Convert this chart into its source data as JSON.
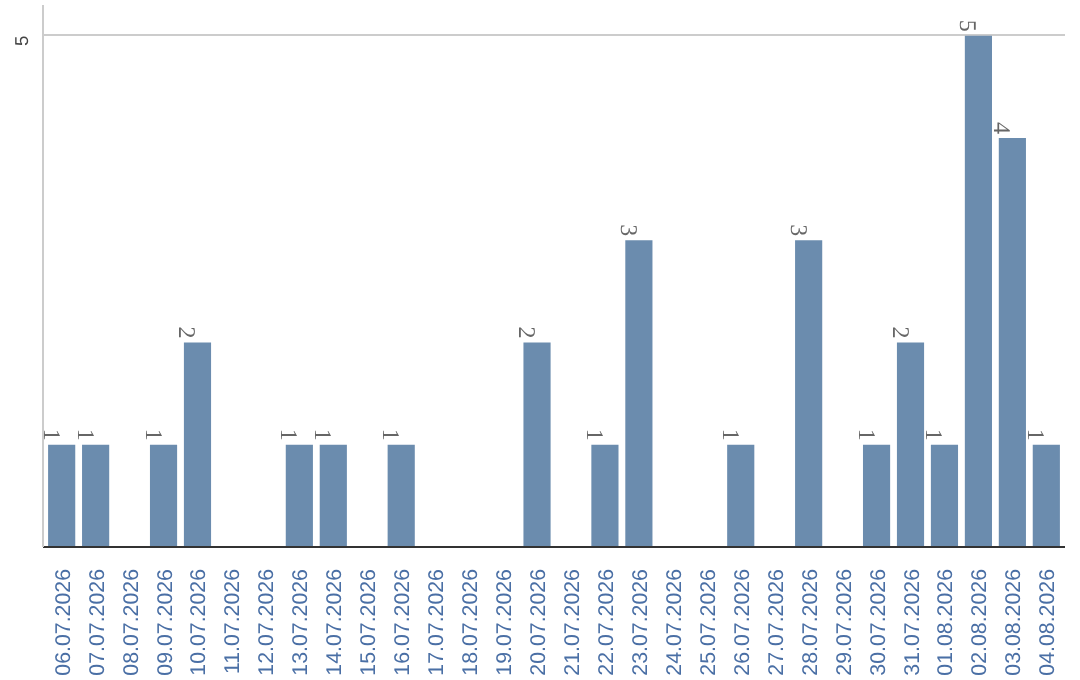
{
  "chart_data": {
    "type": "bar",
    "categories": [
      "06.07.2026",
      "07.07.2026",
      "08.07.2026",
      "09.07.2026",
      "10.07.2026",
      "11.07.2026",
      "12.07.2026",
      "13.07.2026",
      "14.07.2026",
      "15.07.2026",
      "16.07.2026",
      "17.07.2026",
      "18.07.2026",
      "19.07.2026",
      "20.07.2026",
      "21.07.2026",
      "22.07.2026",
      "23.07.2026",
      "24.07.2026",
      "25.07.2026",
      "26.07.2026",
      "27.07.2026",
      "28.07.2026",
      "29.07.2026",
      "30.07.2026",
      "31.07.2026",
      "01.08.2026",
      "02.08.2026",
      "03.08.2026",
      "04.08.2026"
    ],
    "values": [
      1,
      1,
      0,
      1,
      2,
      0,
      0,
      1,
      1,
      0,
      1,
      0,
      0,
      0,
      2,
      0,
      1,
      3,
      0,
      0,
      1,
      0,
      3,
      0,
      1,
      2,
      1,
      5,
      4,
      1
    ],
    "value_labels": [
      "1",
      "1",
      null,
      "1",
      "2",
      null,
      null,
      "1",
      "1",
      null,
      "1",
      null,
      null,
      null,
      "2",
      null,
      "1",
      "3",
      null,
      null,
      "1",
      null,
      "3",
      null,
      "1",
      "2",
      "1",
      "5",
      "4",
      "1"
    ],
    "color": "#6b8cae",
    "ylim": [
      0,
      5.3
    ],
    "yticks": [
      5
    ],
    "grid": "y"
  }
}
